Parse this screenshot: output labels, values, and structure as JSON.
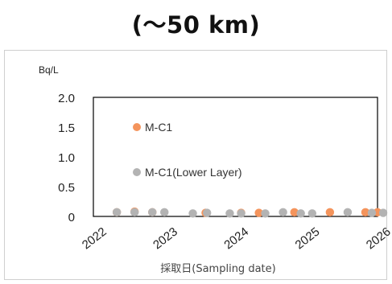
{
  "header": {
    "title": "(〜50 km)"
  },
  "chart_data": {
    "type": "scatter",
    "title": "(〜50 km)",
    "ylabel": "Bq/L",
    "xlabel": "採取日(Sampling date)",
    "ylim": [
      0,
      2.0
    ],
    "yticks": [
      "2.0",
      "1.5",
      "1.0",
      "0.5",
      "0"
    ],
    "ytick_values": [
      2.0,
      1.5,
      1.0,
      0.5,
      0
    ],
    "xlim": [
      2022,
      2026
    ],
    "xticks": [
      "2022",
      "2023",
      "2024",
      "2025",
      "2026"
    ],
    "xtick_values": [
      2022,
      2023,
      2024,
      2025,
      2026
    ],
    "legend_position": "inside-left",
    "series": [
      {
        "name": "M-C1",
        "color": "#f4945c",
        "x": [
          2022.33,
          2022.58,
          2022.83,
          2023.58,
          2024.08,
          2024.33,
          2024.83,
          2025.33,
          2025.83,
          2026.0
        ],
        "y": [
          0.07,
          0.08,
          0.07,
          0.06,
          0.06,
          0.06,
          0.07,
          0.07,
          0.07,
          0.07
        ]
      },
      {
        "name": "M-C1(Lower Layer)",
        "color": "#b3b3b3",
        "x": [
          2022.33,
          2022.58,
          2022.83,
          2023.0,
          2023.4,
          2023.6,
          2023.92,
          2024.08,
          2024.42,
          2024.67,
          2024.92,
          2025.08,
          2025.58,
          2025.92,
          2026.08
        ],
        "y": [
          0.07,
          0.07,
          0.07,
          0.07,
          0.05,
          0.06,
          0.05,
          0.05,
          0.05,
          0.07,
          0.05,
          0.05,
          0.07,
          0.06,
          0.06
        ]
      }
    ]
  }
}
